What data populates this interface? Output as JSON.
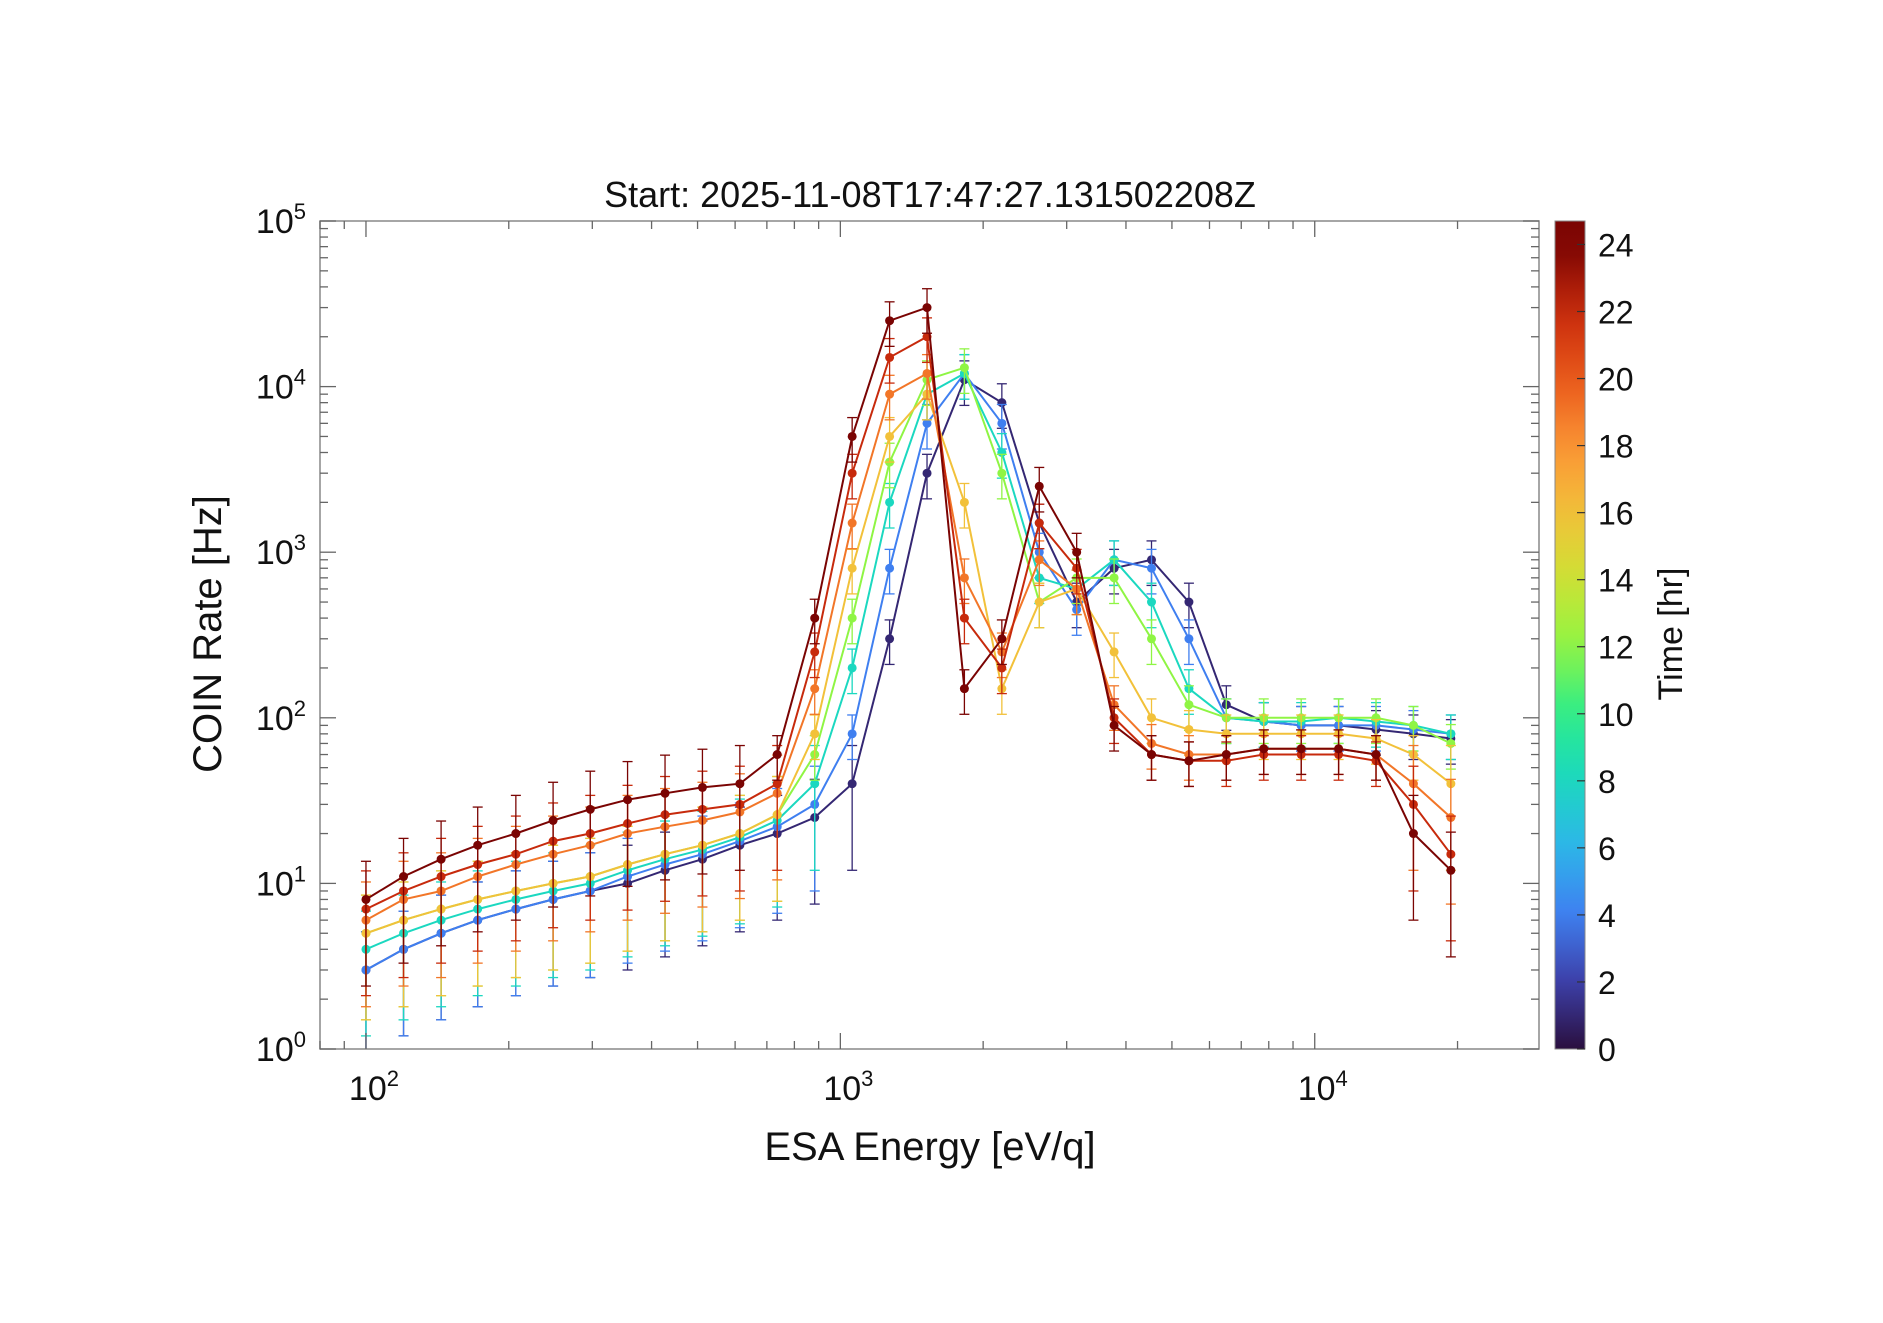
{
  "chart_data": {
    "type": "line",
    "title": "Start: 2025-11-08T17:47:27.131502208Z",
    "xlabel": "ESA Energy [eV/q]",
    "ylabel": "COIN Rate [Hz]",
    "xscale": "log",
    "yscale": "log",
    "xlim": [
      80,
      29700
    ],
    "ylim": [
      1,
      100000
    ],
    "x_ticks": [
      {
        "base": "10",
        "exp": "2"
      },
      {
        "base": "10",
        "exp": "3"
      },
      {
        "base": "10",
        "exp": "4"
      }
    ],
    "y_ticks": [
      {
        "base": "10",
        "exp": "0"
      },
      {
        "base": "10",
        "exp": "1"
      },
      {
        "base": "10",
        "exp": "2"
      },
      {
        "base": "10",
        "exp": "3"
      },
      {
        "base": "10",
        "exp": "4"
      },
      {
        "base": "10",
        "exp": "5"
      }
    ],
    "grid": false,
    "markers": "filled circles with error bars",
    "colorbar": {
      "label": "Time [hr]",
      "range": [
        0,
        24.7
      ],
      "ticks": [
        "0",
        "2",
        "4",
        "6",
        "8",
        "10",
        "12",
        "14",
        "16",
        "18",
        "20",
        "22",
        "24"
      ],
      "colormap": [
        "#2a0f3e",
        "#3d3fa8",
        "#3f7ff0",
        "#2eb5ea",
        "#1bd8c0",
        "#2ded8a",
        "#8ff544",
        "#cde234",
        "#f2c13a",
        "#fb9335",
        "#e9581a",
        "#c72a0c",
        "#7a0403"
      ]
    },
    "x": [
      100,
      120,
      144,
      172,
      207,
      248,
      297,
      356,
      427,
      512,
      614,
      736,
      883,
      1059,
      1270,
      1523,
      1826,
      2190,
      2626,
      3149,
      3776,
      4528,
      5430,
      6511,
      7808,
      9363,
      11228,
      13464,
      16146,
      19362
    ],
    "series": [
      {
        "time_hr": 1,
        "values": [
          3,
          4,
          5,
          6,
          7,
          8,
          9,
          10,
          12,
          14,
          17,
          20,
          25,
          40,
          300,
          3000,
          11000,
          8000,
          1500,
          500,
          800,
          900,
          500,
          120,
          95,
          90,
          90,
          85,
          80,
          75
        ]
      },
      {
        "time_hr": 4,
        "values": [
          3,
          4,
          5,
          6,
          7,
          8,
          9,
          11,
          13,
          15,
          18,
          22,
          30,
          80,
          800,
          6000,
          12000,
          6000,
          1000,
          450,
          900,
          800,
          300,
          100,
          95,
          90,
          90,
          90,
          85,
          80
        ]
      },
      {
        "time_hr": 8,
        "values": [
          4,
          5,
          6,
          7,
          8,
          9,
          10,
          12,
          14,
          16,
          19,
          24,
          40,
          200,
          2000,
          9000,
          12000,
          4000,
          700,
          600,
          900,
          500,
          150,
          100,
          95,
          95,
          100,
          95,
          90,
          80
        ]
      },
      {
        "time_hr": 12,
        "values": [
          5,
          6,
          7,
          8,
          9,
          10,
          11,
          13,
          15,
          17,
          20,
          26,
          60,
          400,
          3500,
          11000,
          13000,
          3000,
          500,
          700,
          700,
          300,
          120,
          100,
          100,
          100,
          100,
          100,
          90,
          70
        ]
      },
      {
        "time_hr": 16,
        "values": [
          5,
          6,
          7,
          8,
          9,
          10,
          11,
          13,
          15,
          17,
          20,
          26,
          80,
          800,
          5000,
          9000,
          2000,
          150,
          500,
          600,
          250,
          100,
          85,
          80,
          80,
          80,
          80,
          75,
          60,
          40
        ]
      },
      {
        "time_hr": 19,
        "values": [
          6,
          8,
          9,
          11,
          13,
          15,
          17,
          20,
          22,
          24,
          27,
          35,
          150,
          1500,
          9000,
          12000,
          700,
          250,
          900,
          600,
          120,
          70,
          60,
          60,
          65,
          65,
          65,
          60,
          40,
          25
        ]
      },
      {
        "time_hr": 22,
        "values": [
          7,
          9,
          11,
          13,
          15,
          18,
          20,
          23,
          26,
          28,
          30,
          40,
          250,
          3000,
          15000,
          20000,
          400,
          200,
          1500,
          800,
          100,
          60,
          55,
          55,
          60,
          60,
          60,
          55,
          30,
          15
        ]
      },
      {
        "time_hr": 24,
        "values": [
          8,
          11,
          14,
          17,
          20,
          24,
          28,
          32,
          35,
          38,
          40,
          60,
          400,
          5000,
          25000,
          30000,
          150,
          300,
          2500,
          1000,
          90,
          60,
          55,
          60,
          65,
          65,
          65,
          60,
          20,
          12
        ]
      }
    ]
  }
}
